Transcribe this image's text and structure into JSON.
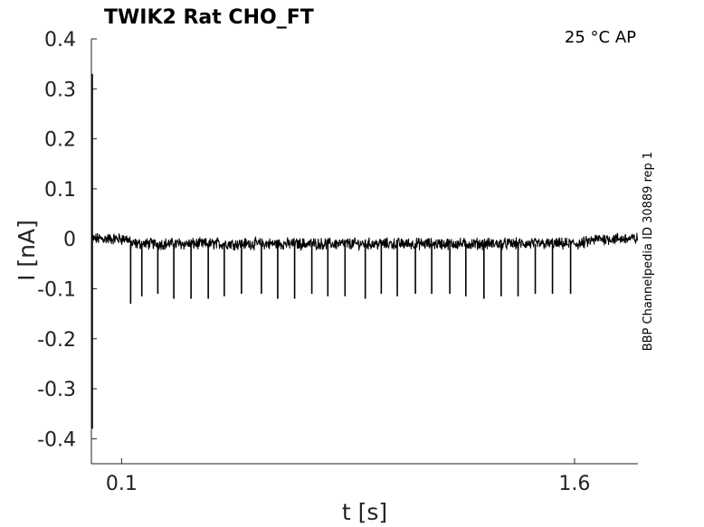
{
  "chart_data": {
    "type": "line",
    "title": "TWIK2  Rat  CHO_FT",
    "corner_text": "25 °C  AP",
    "side_text": "BBP Channelpedia ID 30889 rep 1",
    "xlabel": "t [s]",
    "ylabel": "I [nA]",
    "xlim": [
      0.0,
      1.81
    ],
    "ylim": [
      -0.45,
      0.4
    ],
    "xticks": [
      0.1,
      1.6
    ],
    "xtick_labels": [
      "0.1",
      "1.6"
    ],
    "yticks": [
      0.4,
      0.3,
      0.2,
      0.1,
      0,
      -0.1,
      -0.2,
      -0.3,
      -0.4
    ],
    "ytick_labels": [
      "0.4",
      "0.3",
      "0.2",
      "0.1",
      "0",
      "-0.1",
      "-0.2",
      "-0.3",
      "-0.4"
    ],
    "grid": false,
    "series": [
      {
        "color": "#000000",
        "initial_transient": {
          "t": 0.0,
          "max": 0.33,
          "min": -0.38
        },
        "baseline": [
          {
            "t": 0.0,
            "i": 0.0
          },
          {
            "t": 0.12,
            "i": 0.0
          },
          {
            "t": 0.13,
            "i": -0.01
          },
          {
            "t": 1.62,
            "i": -0.01
          },
          {
            "t": 1.68,
            "i": 0.0
          },
          {
            "t": 1.81,
            "i": 0.0
          }
        ],
        "spikes": [
          {
            "t": 0.13,
            "peak": -0.13
          },
          {
            "t": 0.167,
            "peak": -0.115
          },
          {
            "t": 0.22,
            "peak": -0.11
          },
          {
            "t": 0.273,
            "peak": -0.12
          },
          {
            "t": 0.33,
            "peak": -0.12
          },
          {
            "t": 0.387,
            "peak": -0.12
          },
          {
            "t": 0.44,
            "peak": -0.115
          },
          {
            "t": 0.497,
            "peak": -0.11
          },
          {
            "t": 0.563,
            "peak": -0.11
          },
          {
            "t": 0.617,
            "peak": -0.12
          },
          {
            "t": 0.673,
            "peak": -0.12
          },
          {
            "t": 0.73,
            "peak": -0.11
          },
          {
            "t": 0.783,
            "peak": -0.115
          },
          {
            "t": 0.84,
            "peak": -0.115
          },
          {
            "t": 0.907,
            "peak": -0.12
          },
          {
            "t": 0.96,
            "peak": -0.11
          },
          {
            "t": 1.013,
            "peak": -0.115
          },
          {
            "t": 1.073,
            "peak": -0.11
          },
          {
            "t": 1.127,
            "peak": -0.11
          },
          {
            "t": 1.187,
            "peak": -0.11
          },
          {
            "t": 1.24,
            "peak": -0.115
          },
          {
            "t": 1.3,
            "peak": -0.12
          },
          {
            "t": 1.357,
            "peak": -0.115
          },
          {
            "t": 1.413,
            "peak": -0.115
          },
          {
            "t": 1.47,
            "peak": -0.11
          },
          {
            "t": 1.527,
            "peak": -0.11
          },
          {
            "t": 1.587,
            "peak": -0.11
          }
        ]
      }
    ]
  }
}
